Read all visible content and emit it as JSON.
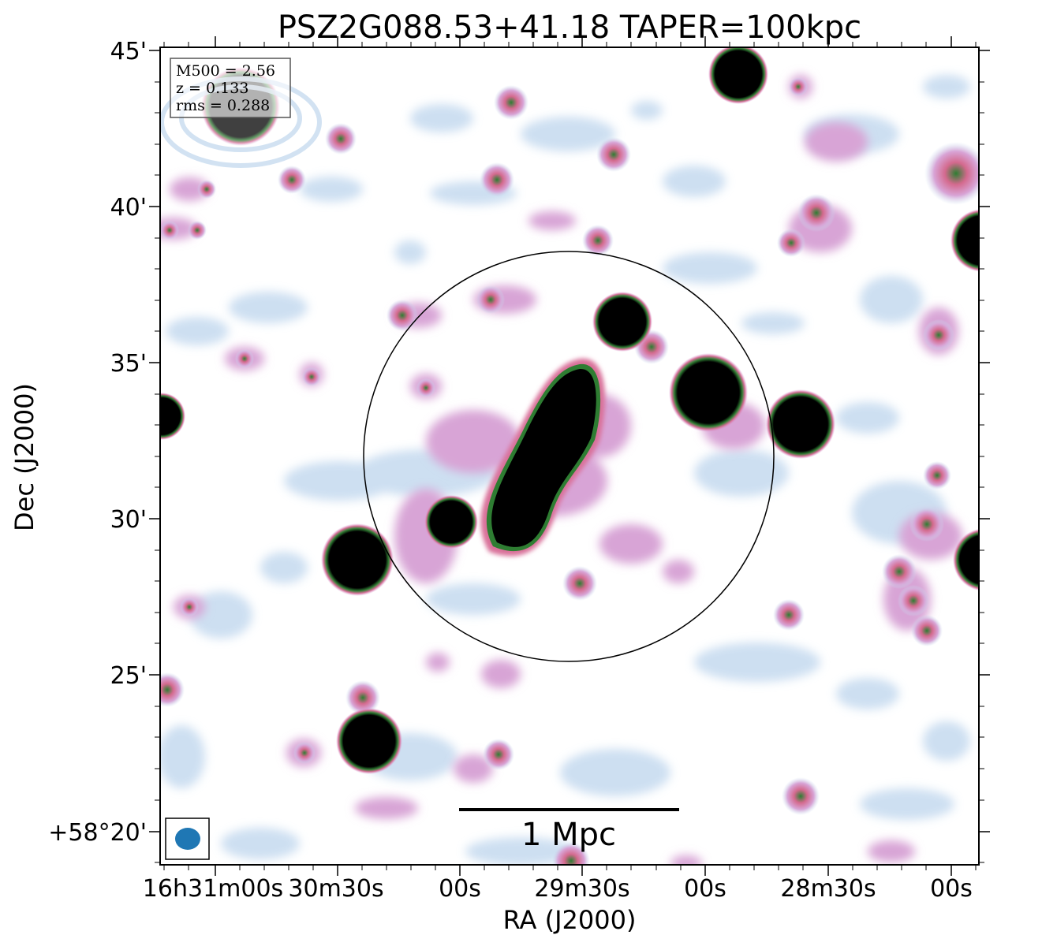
{
  "title": "PSZ2G088.53+41.18 TAPER=100kpc",
  "x_axis_label": "RA (J2000)",
  "y_axis_label": "Dec (J2000)",
  "x_tick_labels": [
    "16h31m00s",
    "30m30s",
    "00s",
    "29m30s",
    "00s",
    "28m30s",
    "00s"
  ],
  "y_tick_labels": [
    "45'",
    "40'",
    "35'",
    "30'",
    "25'",
    "+58°20'"
  ],
  "info_box": {
    "line1": "M500 = 2.56",
    "line2": "z = 0.133",
    "line3": "rms = 0.288"
  },
  "scale_bar_label": "1 Mpc",
  "colors": {
    "faint_emission": "#c8dcf0",
    "medium_emission": "#d4a0d2",
    "bright_emission": "#d9719a",
    "peak_emission": "#2e7d32",
    "saturated": "#000000",
    "beam": "#1f77b4"
  }
}
